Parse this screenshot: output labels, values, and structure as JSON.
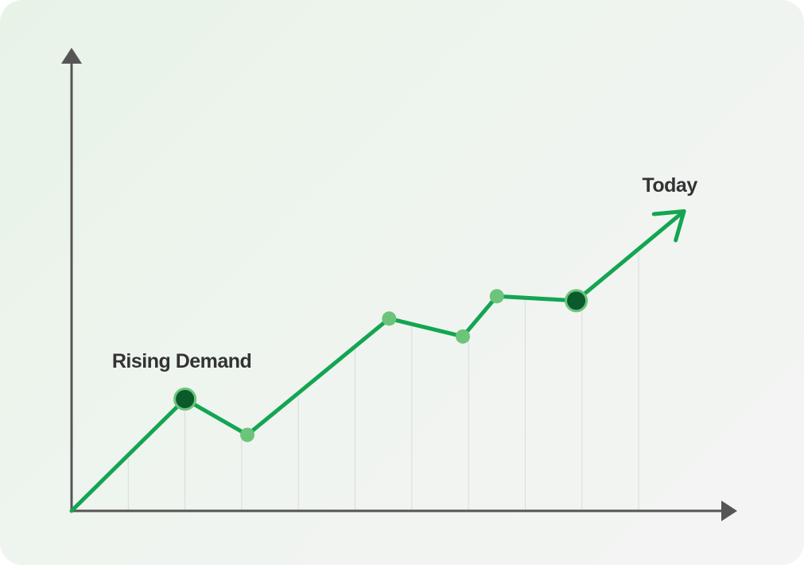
{
  "chart_data": {
    "type": "line",
    "annotations": [
      {
        "text": "Rising Demand",
        "point": 1
      },
      {
        "text": "Today",
        "point": 7
      }
    ],
    "x": [
      0,
      2,
      3.1,
      5.6,
      6.9,
      7.5,
      8.9,
      10.8
    ],
    "series": [
      {
        "color": "#13a552",
        "values": [
          0,
          2.5,
          1.7,
          4.3,
          3.9,
          4.8,
          4.7,
          6.7
        ]
      }
    ],
    "xlim": [
      0,
      11.5
    ],
    "ylim": [
      0,
      10
    ],
    "grid_x": [
      1,
      2,
      3,
      4,
      5,
      6,
      7,
      8,
      9,
      10
    ],
    "marker_color": "#6cc47a",
    "highlight_color": "#0b5a2c",
    "highlight": [
      1,
      6
    ],
    "axis_color": "#555555"
  }
}
